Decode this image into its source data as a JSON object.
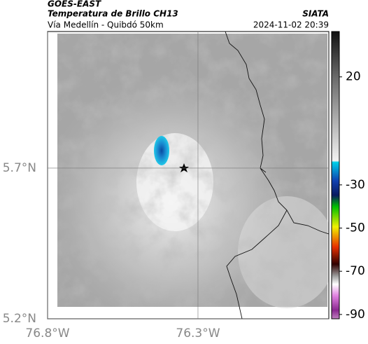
{
  "header": {
    "title": "GOES-EAST",
    "subtitle": "Temperatura de Brillo CH13",
    "route": "Vía Medellín - Quibdó 50km",
    "source": "SIATA",
    "timestamp": "2024-11-02 20:39"
  },
  "map": {
    "xlim": [
      -76.8,
      -75.865
    ],
    "ylim": [
      5.2,
      6.153
    ],
    "xticks": [
      {
        "value": -76.8,
        "label": "76.8°W"
      },
      {
        "value": -76.3,
        "label": "76.3°W"
      }
    ],
    "yticks": [
      {
        "value": 5.2,
        "label": "5.2°N"
      },
      {
        "value": 5.7,
        "label": "5.7°N"
      }
    ]
  },
  "colorbar": {
    "lim": [
      -92,
      41
    ],
    "ticks": [
      20,
      -30,
      -50,
      -70,
      -90
    ]
  }
}
